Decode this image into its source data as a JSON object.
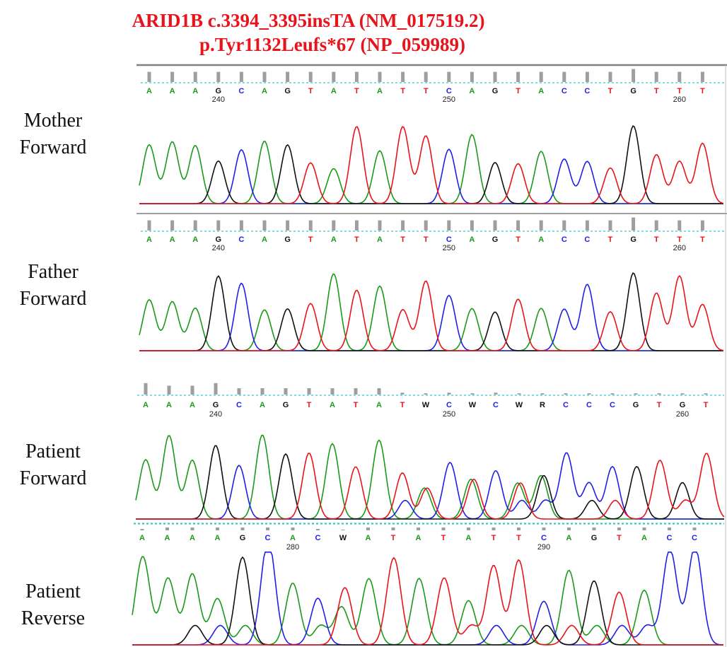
{
  "title": {
    "line1": "ARID1B c.3394_3395insTA (NM_017519.2)",
    "line2": "p.Tyr1132Leufs*67 (NP_059989)"
  },
  "colors": {
    "A": "#1a9a1a",
    "C": "#2020e8",
    "G": "#111111",
    "T": "#e8141b",
    "N": "#111111",
    "title": "#e8141b"
  },
  "panels": [
    {
      "id": "mother",
      "label_line1": "Mother",
      "label_line2": "Forward",
      "bases": [
        "A",
        "A",
        "A",
        "G",
        "C",
        "A",
        "G",
        "T",
        "A",
        "T",
        "A",
        "T",
        "T",
        "C",
        "A",
        "G",
        "T",
        "A",
        "C",
        "C",
        "T",
        "G",
        "T",
        "T",
        "T"
      ],
      "quality": [
        0.9,
        0.9,
        0.9,
        0.9,
        0.9,
        0.9,
        0.9,
        0.9,
        0.9,
        0.9,
        0.9,
        0.9,
        0.9,
        0.9,
        0.9,
        0.9,
        0.9,
        0.9,
        0.9,
        0.9,
        0.9,
        0.9,
        0.9,
        0.9,
        0.9
      ],
      "positions": [
        {
          "label": "240",
          "index": 3
        },
        {
          "label": "250",
          "index": 13
        },
        {
          "label": "260",
          "index": 23
        }
      ]
    },
    {
      "id": "father",
      "label_line1": "Father",
      "label_line2": "Forward",
      "bases": [
        "A",
        "A",
        "A",
        "G",
        "C",
        "A",
        "G",
        "T",
        "A",
        "T",
        "A",
        "T",
        "T",
        "C",
        "A",
        "G",
        "T",
        "A",
        "C",
        "C",
        "T",
        "G",
        "T",
        "T",
        "T"
      ],
      "quality": [
        0.9,
        0.9,
        0.9,
        0.9,
        0.9,
        0.9,
        0.9,
        0.9,
        0.9,
        0.9,
        0.9,
        0.9,
        0.9,
        0.9,
        0.9,
        0.9,
        0.9,
        0.9,
        0.9,
        0.9,
        0.9,
        0.9,
        0.9,
        0.9,
        0.9
      ],
      "positions": [
        {
          "label": "240",
          "index": 3
        },
        {
          "label": "250",
          "index": 13
        },
        {
          "label": "260",
          "index": 23
        }
      ]
    },
    {
      "id": "patient-forward",
      "label_line1": "Patient",
      "label_line2": "Forward",
      "bases": [
        "A",
        "A",
        "A",
        "G",
        "C",
        "A",
        "G",
        "T",
        "A",
        "T",
        "A",
        "T",
        "W",
        "C",
        "W",
        "C",
        "W",
        "R",
        "C",
        "C",
        "C",
        "G",
        "T",
        "G",
        "T"
      ],
      "quality": [
        0.9,
        0.7,
        0.7,
        0.9,
        0.5,
        0.5,
        0.5,
        0.5,
        0.5,
        0.5,
        0.5,
        0.15,
        0.1,
        0.15,
        0.1,
        0.15,
        0.1,
        0.1,
        0.1,
        0.1,
        0.1,
        0.1,
        0.1,
        0.1,
        0.1
      ],
      "positions": [
        {
          "label": "240",
          "index": 3
        },
        {
          "label": "250",
          "index": 13
        },
        {
          "label": "260",
          "index": 23
        }
      ]
    },
    {
      "id": "patient-reverse",
      "label_line1": "Patient",
      "label_line2": "Reverse",
      "bases": [
        "A",
        "A",
        "A",
        "A",
        "G",
        "C",
        "A",
        "C",
        "W",
        "A",
        "T",
        "A",
        "T",
        "A",
        "T",
        "T",
        "C",
        "A",
        "G",
        "T",
        "A",
        "C",
        "C"
      ],
      "quality": [
        0.2,
        0.4,
        0.4,
        0.4,
        0.4,
        0.4,
        0.4,
        0.2,
        0.1,
        0.4,
        0.4,
        0.4,
        0.4,
        0.4,
        0.4,
        0.4,
        0.4,
        0.4,
        0.4,
        0.4,
        0.4,
        0.4,
        0.4
      ],
      "positions": [
        {
          "label": "280",
          "index": 6
        },
        {
          "label": "290",
          "index": 16
        }
      ]
    }
  ]
}
